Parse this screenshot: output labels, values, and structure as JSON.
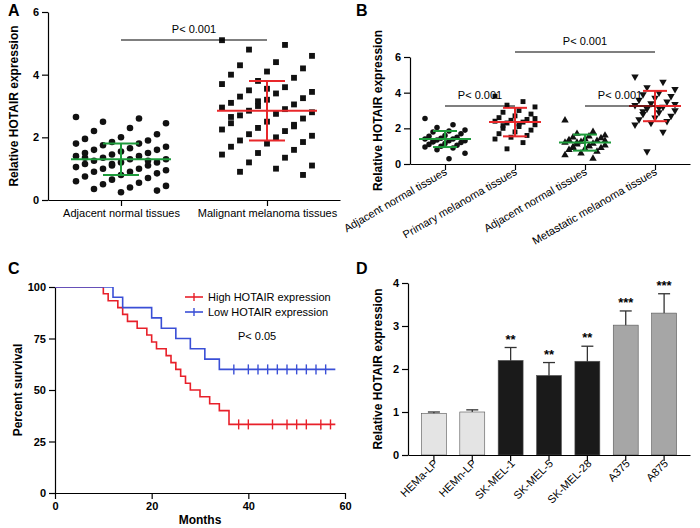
{
  "chart_data": [
    {
      "type": "dot_plot",
      "title": "A",
      "y_label": "Relative HOTAIR expression",
      "categories": [
        "Adjacent normal tissues",
        "Malignant melanoma tissues"
      ],
      "groups": [
        {
          "marker": "circle",
          "color": "#1e9b3c",
          "mean": 1.3,
          "sd": 0.5,
          "values": [
            2.65,
            2.6,
            2.5,
            2.45,
            2.3,
            2.2,
            2.1,
            2.0,
            1.95,
            1.9,
            1.85,
            1.8,
            1.8,
            1.75,
            1.7,
            1.65,
            1.6,
            1.6,
            1.55,
            1.5,
            1.5,
            1.45,
            1.4,
            1.4,
            1.35,
            1.3,
            1.3,
            1.25,
            1.2,
            1.2,
            1.15,
            1.1,
            1.1,
            1.05,
            1.0,
            1.0,
            0.95,
            0.9,
            0.9,
            0.85,
            0.8,
            0.75,
            0.7,
            0.65,
            0.6,
            0.55,
            0.5,
            0.45,
            0.4,
            0.35,
            0.3,
            0.25,
            1.35,
            1.25,
            1.15
          ]
        },
        {
          "marker": "square",
          "color": "#e8282b",
          "mean": 2.85,
          "sd": 0.95,
          "values": [
            5.1,
            4.95,
            4.8,
            4.6,
            4.4,
            4.3,
            4.2,
            4.1,
            4.0,
            3.9,
            3.8,
            3.7,
            3.6,
            3.5,
            3.45,
            3.4,
            3.3,
            3.25,
            3.2,
            3.1,
            3.05,
            3.0,
            2.95,
            2.9,
            2.85,
            2.8,
            2.75,
            2.7,
            2.6,
            2.5,
            2.45,
            2.4,
            2.3,
            2.25,
            2.2,
            2.1,
            2.05,
            2.0,
            1.9,
            1.85,
            1.8,
            1.7,
            1.6,
            1.5,
            1.45,
            1.35,
            1.2,
            1.1,
            1.0,
            0.9,
            0.8,
            3.55,
            2.65,
            2.35,
            3.15
          ]
        }
      ],
      "ylim": [
        0,
        6
      ],
      "yticks": [
        0,
        2,
        4,
        6
      ],
      "annotations": [
        {
          "text": "P< 0.001",
          "between": [
            0,
            1
          ]
        }
      ]
    },
    {
      "type": "dot_plot",
      "title": "B",
      "y_label": "Relative HOTAIR expression",
      "categories": [
        "Adjacent normal tissues",
        "Primary melanoma tissues",
        "Adjacent normal tissues",
        "Metastatic melanoma tissues"
      ],
      "groups": [
        {
          "marker": "circle",
          "color": "#1e9b3c",
          "mean": 1.4,
          "sd": 0.45,
          "values": [
            2.55,
            2.2,
            2.05,
            1.9,
            1.85,
            1.8,
            1.7,
            1.6,
            1.55,
            1.5,
            1.45,
            1.4,
            1.4,
            1.35,
            1.3,
            1.3,
            1.25,
            1.2,
            1.15,
            1.1,
            1.05,
            1.0,
            0.95,
            0.9,
            0.8,
            0.6,
            0.3,
            1.25
          ]
        },
        {
          "marker": "square",
          "color": "#e8282b",
          "mean": 2.35,
          "sd": 0.8,
          "values": [
            3.8,
            3.5,
            3.3,
            3.2,
            3.0,
            2.9,
            2.8,
            2.7,
            2.6,
            2.5,
            2.45,
            2.4,
            2.35,
            2.3,
            2.2,
            2.1,
            2.0,
            1.9,
            1.8,
            1.7,
            1.6,
            1.5,
            1.4,
            1.2,
            0.85,
            2.55,
            2.25,
            2.15
          ]
        },
        {
          "marker": "triangle",
          "color": "#1e9b3c",
          "mean": 1.2,
          "sd": 0.45,
          "values": [
            2.45,
            1.8,
            1.7,
            1.6,
            1.55,
            1.5,
            1.45,
            1.4,
            1.35,
            1.3,
            1.25,
            1.2,
            1.15,
            1.1,
            1.05,
            1.0,
            0.95,
            0.9,
            0.85,
            0.8,
            0.7,
            0.6,
            0.5,
            0.3,
            1.2,
            1.3,
            1.0,
            0.9
          ]
        },
        {
          "marker": "triangle-down",
          "color": "#e8282b",
          "mean": 3.25,
          "sd": 0.85,
          "values": [
            4.9,
            4.6,
            4.3,
            4.2,
            4.0,
            3.9,
            3.8,
            3.7,
            3.6,
            3.5,
            3.4,
            3.3,
            3.2,
            3.1,
            3.0,
            2.9,
            2.8,
            2.7,
            2.6,
            2.5,
            2.4,
            2.3,
            2.2,
            1.8,
            0.7,
            3.35,
            3.15,
            2.95
          ]
        }
      ],
      "ylim": [
        0,
        6
      ],
      "yticks": [
        0,
        2,
        4,
        6
      ],
      "annotations": [
        {
          "text": "P< 0.001",
          "between": [
            0,
            1
          ]
        },
        {
          "text": "P< 0.001",
          "between": [
            1,
            3
          ]
        },
        {
          "text": "P< 0.001",
          "between": [
            2,
            3
          ]
        }
      ]
    },
    {
      "type": "line",
      "title": "C",
      "x_label": "Months",
      "y_label": "Percent survival",
      "xlim": [
        0,
        60
      ],
      "xticks": [
        0,
        20,
        40,
        60
      ],
      "ylim": [
        0,
        100
      ],
      "yticks": [
        0,
        25,
        50,
        75,
        100
      ],
      "legend": "top-right",
      "series": [
        {
          "name": "High HOTAIR expression",
          "color": "#e8202a",
          "line_style": "step",
          "x": [
            0,
            10,
            11,
            13,
            14,
            15,
            17,
            19,
            20,
            21,
            23,
            24,
            25,
            26,
            27,
            28,
            30,
            32,
            34,
            36,
            58
          ],
          "values": [
            100,
            96.7,
            93.3,
            90,
            86.7,
            83.3,
            80,
            76.7,
            73.3,
            70,
            66.7,
            63.3,
            60,
            56.7,
            53.3,
            50,
            46.7,
            43.3,
            40,
            33.3,
            33.3
          ],
          "censored": [
            38,
            40,
            45,
            48,
            50,
            52,
            55,
            57
          ]
        },
        {
          "name": "Low HOTAIR expression",
          "color": "#3a4fd6",
          "line_style": "step",
          "x": [
            0,
            12,
            14,
            20,
            22,
            25,
            28,
            31,
            34,
            58
          ],
          "values": [
            100,
            95,
            90,
            85,
            80,
            75,
            70,
            65,
            60,
            60
          ],
          "censored": [
            37,
            40,
            42,
            44,
            46,
            48,
            50,
            52,
            54,
            56
          ]
        }
      ],
      "annotations": [
        {
          "text": "P< 0.05"
        }
      ]
    },
    {
      "type": "bar",
      "title": "D",
      "y_label": "Relative HOTAIR expression",
      "categories": [
        "HEMa-LP",
        "HEMn-LP",
        "SK-MEL-1",
        "SK-MEL-5",
        "SK-MEL-28",
        "A375",
        "A875"
      ],
      "values": [
        0.97,
        1.0,
        2.2,
        1.85,
        2.18,
        3.02,
        3.3
      ],
      "errors": [
        0.03,
        0.05,
        0.3,
        0.3,
        0.35,
        0.33,
        0.45
      ],
      "colors": [
        "#e4e4e4",
        "#e4e4e4",
        "#1a1a1a",
        "#1a1a1a",
        "#1a1a1a",
        "#a6a6a6",
        "#a6a6a6"
      ],
      "significance": [
        null,
        null,
        "**",
        "**",
        "**",
        "***",
        "***"
      ],
      "ylim": [
        0,
        4
      ],
      "yticks": [
        0,
        1,
        2,
        3,
        4
      ]
    }
  ]
}
